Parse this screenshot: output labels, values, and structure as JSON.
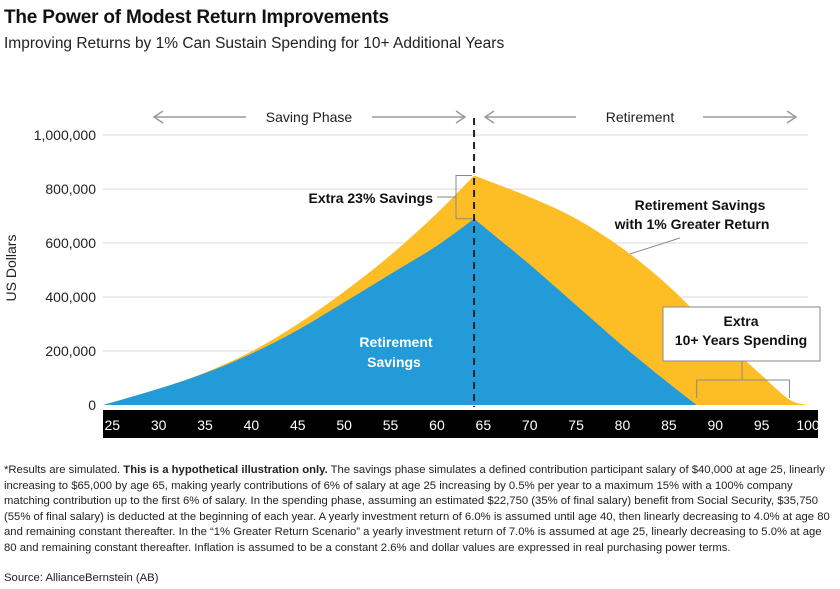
{
  "title": "The Power of Modest Return Improvements",
  "subtitle": "Improving Returns by 1% Can Sustain Spending for 10+ Additional Years",
  "footnote": {
    "lead": "*Results are simulated. ",
    "bold": "This is a hypothetical illustration only.",
    "body": " The savings phase simulates a defined contribution participant salary of $40,000 at age 25, linearly increasing to $65,000 by age 65, making yearly contributions of 6% of salary at age 25 increasing by 0.5% per year to a maximum 15% with a 100% company matching contribution up to the first 6% of salary. In the spending phase, assuming an estimated $22,750 (35% of final salary) benefit from Social Security, $35,750 (55% of final salary) is deducted at the beginning of each year. A yearly investment return of 6.0% is assumed until age 40, then linearly decreasing to 4.0% at age 80 and remaining constant thereafter. In the “1% Greater Return Scenario” a yearly investment return of 7.0% is assumed at age 25, linearly decreasing to 5.0% at age 80 and remaining constant thereafter. Inflation is assumed to be a constant 2.6% and dollar values are expressed in real purchasing power terms."
  },
  "source": "Source: AllianceBernstein (AB)",
  "colors": {
    "blue": "#239bd8",
    "gold": "#fcbd25",
    "axis_bar": "#000000",
    "grid": "#d9d9d9",
    "arrow": "#9a9a9a"
  },
  "chart_data": {
    "type": "area",
    "title": "The Power of Modest Return Improvements",
    "xlabel": "",
    "ylabel": "US Dollars",
    "xlim": [
      24,
      100
    ],
    "ylim": [
      0,
      1000000
    ],
    "x_ticks": [
      25,
      30,
      35,
      40,
      45,
      50,
      55,
      60,
      65,
      70,
      75,
      80,
      85,
      90,
      95,
      100
    ],
    "y_ticks": [
      0,
      200000,
      400000,
      600000,
      800000,
      1000000
    ],
    "y_tick_labels": [
      "0",
      "200,000",
      "400,000",
      "600,000",
      "800,000",
      "1,000,000"
    ],
    "grid": "horizontal",
    "divider_age": 64,
    "phases": [
      {
        "label": "Saving Phase",
        "from": 24,
        "to": 64
      },
      {
        "label": "Retirement",
        "from": 64,
        "to": 100
      }
    ],
    "series": [
      {
        "name": "Retirement Savings with 1% Greater Return",
        "x": [
          24,
          30,
          35,
          40,
          45,
          50,
          55,
          60,
          64,
          70,
          75,
          80,
          85,
          90,
          95,
          98,
          100
        ],
        "values": [
          0,
          60000,
          120000,
          198000,
          300000,
          420000,
          555000,
          710000,
          850000,
          770000,
          690000,
          580000,
          440000,
          270000,
          110000,
          20000,
          0
        ]
      },
      {
        "name": "Retirement Savings",
        "x": [
          24,
          30,
          35,
          40,
          45,
          50,
          55,
          60,
          64,
          70,
          75,
          80,
          85,
          88
        ],
        "values": [
          0,
          60000,
          118000,
          190000,
          278000,
          380000,
          485000,
          590000,
          690000,
          520000,
          370000,
          220000,
          80000,
          0
        ]
      }
    ],
    "annotations": [
      {
        "text": "Extra 23% Savings",
        "age": 64
      },
      {
        "text": "Retirement Savings",
        "text2": "with 1% Greater Return"
      },
      {
        "text": "Retirement",
        "text2": "Savings"
      },
      {
        "text": "Extra",
        "text2": "10+ Years Spending",
        "from_age": 88,
        "to_age": 98
      }
    ]
  }
}
